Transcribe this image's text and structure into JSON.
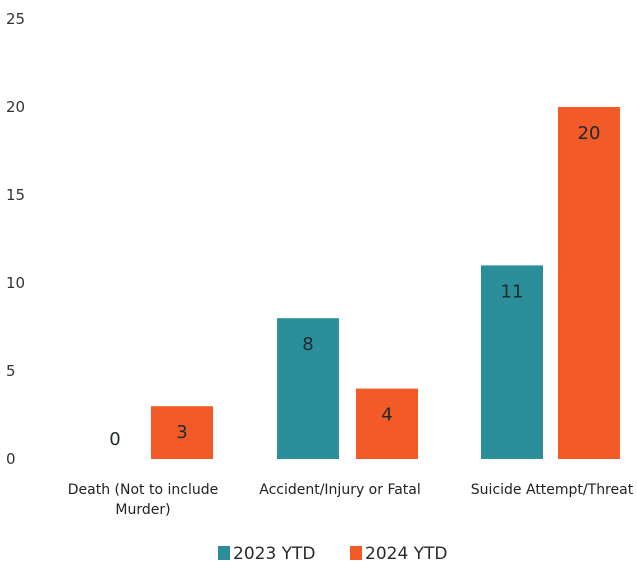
{
  "chart_data": {
    "type": "bar",
    "categories": [
      [
        "Death (Not to include",
        "Murder)"
      ],
      [
        "Accident/Injury or Fatal"
      ],
      [
        "Suicide Attempt/Threat"
      ]
    ],
    "series": [
      {
        "name": "2023 YTD",
        "color": "#2a8f98",
        "values": [
          0,
          8,
          11
        ]
      },
      {
        "name": "2024 YTD",
        "color": "#f25a28",
        "values": [
          3,
          4,
          20
        ]
      }
    ],
    "ylim": [
      0,
      25
    ],
    "yticks": [
      0,
      5,
      10,
      15,
      20,
      25
    ],
    "title": "",
    "xlabel": "",
    "ylabel": "",
    "legend_position": "bottom-center",
    "grid": false
  }
}
